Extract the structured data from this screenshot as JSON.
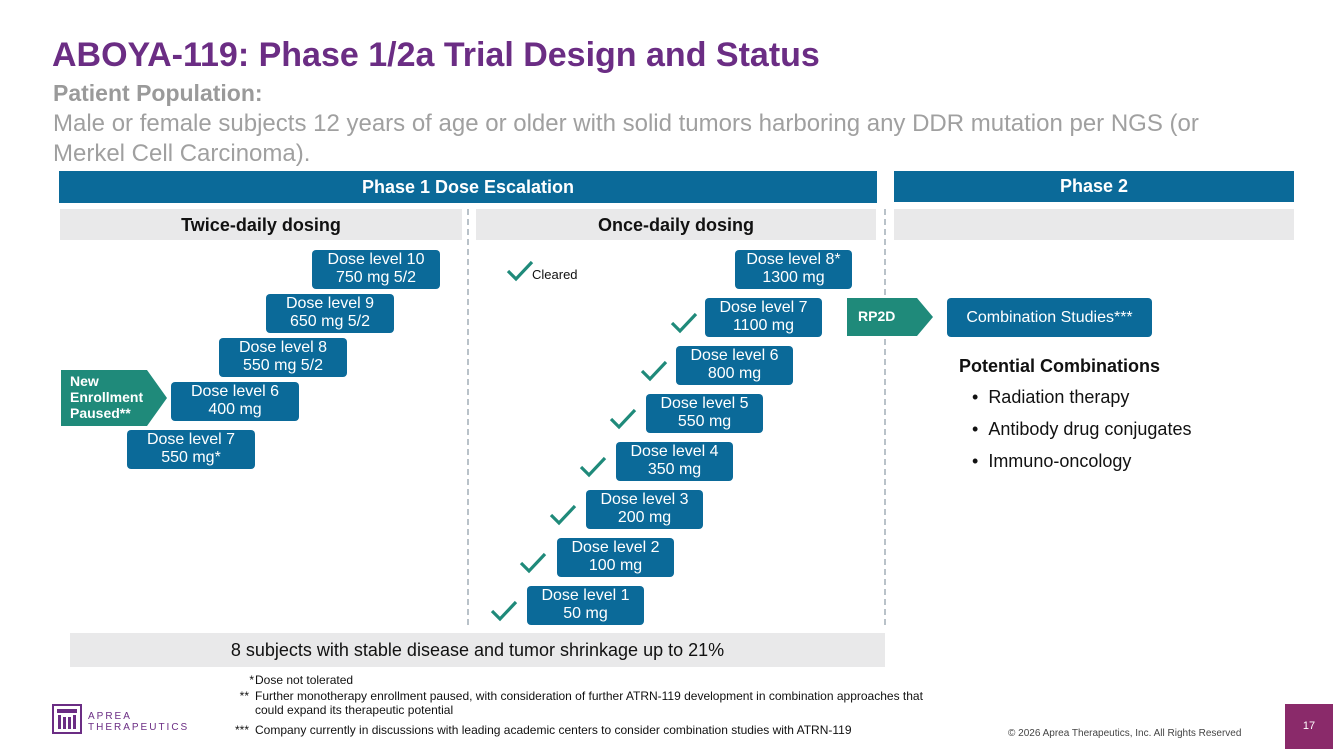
{
  "title": "ABOYA-119: Phase 1/2a Trial Design and Status",
  "patient_population": {
    "label": "Patient Population:",
    "text": "Male or female subjects 12 years of age or older with solid tumors harboring any DDR mutation per NGS (or Merkel Cell Carcinoma)."
  },
  "phase1": {
    "header": "Phase 1 Dose Escalation",
    "twice_daily": {
      "header": "Twice-daily dosing",
      "doses": [
        {
          "line1": "Dose level 10",
          "line2": "750 mg 5/2"
        },
        {
          "line1": "Dose level 9",
          "line2": "650 mg 5/2"
        },
        {
          "line1": "Dose level 8",
          "line2": "550 mg 5/2"
        },
        {
          "line1": "Dose level 6",
          "line2": "400 mg"
        },
        {
          "line1": "Dose level 7",
          "line2": "550 mg*"
        }
      ],
      "paused_badge": {
        "line1": "New",
        "line2": "Enrollment",
        "line3": "Paused**"
      }
    },
    "once_daily": {
      "header": "Once-daily dosing",
      "legend_cleared": "Cleared",
      "doses": [
        {
          "line1": "Dose level 8*",
          "line2": "1300 mg"
        },
        {
          "line1": "Dose level 7",
          "line2": "1100 mg"
        },
        {
          "line1": "Dose level 6",
          "line2": "800 mg"
        },
        {
          "line1": "Dose level 5",
          "line2": "550 mg"
        },
        {
          "line1": "Dose level 4",
          "line2": "350 mg"
        },
        {
          "line1": "Dose level 3",
          "line2": "200 mg"
        },
        {
          "line1": "Dose level 2",
          "line2": "100 mg"
        },
        {
          "line1": "Dose level 1",
          "line2": "50 mg"
        }
      ]
    },
    "summary": "8 subjects with stable disease and tumor shrinkage up to 21%"
  },
  "phase2": {
    "header": "Phase 2",
    "rp2d": "RP2D",
    "combination_box": "Combination Studies***",
    "potential_title": "Potential Combinations",
    "combinations": [
      "Radiation therapy",
      "Antibody drug conjugates",
      "Immuno-oncology"
    ]
  },
  "footnotes": [
    {
      "mark": "*",
      "text": "Dose not tolerated"
    },
    {
      "mark": "**",
      "text": "Further monotherapy enrollment paused, with consideration of further ATRN-119 development in combination approaches that could expand its therapeutic potential"
    },
    {
      "mark": "***",
      "text": "Company currently in discussions with leading academic centers to consider combination studies with ATRN-119"
    }
  ],
  "logo": {
    "line1": "APREA",
    "line2": "THERAPEUTICS"
  },
  "copyright": "© 2026 Aprea Therapeutics, Inc. All Rights Reserved",
  "page_number": "17",
  "colors": {
    "purple": "#6b2d84",
    "blue": "#0b6a99",
    "teal": "#1f8a7a",
    "gray_bar": "#e9e9ea",
    "page_badge": "#8a2a6a"
  }
}
